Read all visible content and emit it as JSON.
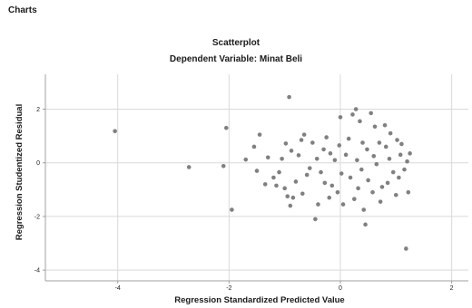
{
  "page": {
    "header": "Charts"
  },
  "chart_data": {
    "type": "scatter",
    "title": "Scatterplot",
    "subtitle": "Dependent Variable: Minat Beli",
    "xlabel": "Regression Standardized Predicted Value",
    "ylabel": "Regression Studentized Residual",
    "xlim": [
      -5.3,
      2.3
    ],
    "ylim": [
      -4.4,
      3.3
    ],
    "xticks": [
      -4,
      -2,
      0,
      2
    ],
    "yticks": [
      -4,
      -2,
      0,
      2
    ],
    "grid": true,
    "point_color": "#808080",
    "gridline_color": "#d9d9d9",
    "axis_color": "#a0a0a0",
    "points": [
      [
        -4.05,
        1.18
      ],
      [
        -2.72,
        -0.16
      ],
      [
        -2.1,
        -0.12
      ],
      [
        -2.05,
        1.3
      ],
      [
        -1.95,
        -1.75
      ],
      [
        -1.7,
        0.12
      ],
      [
        -1.55,
        0.6
      ],
      [
        -1.5,
        -0.3
      ],
      [
        -1.45,
        1.05
      ],
      [
        -1.35,
        -0.8
      ],
      [
        -1.3,
        0.2
      ],
      [
        -1.2,
        -0.55
      ],
      [
        -1.15,
        -0.85
      ],
      [
        -1.1,
        -0.35
      ],
      [
        -1.05,
        0.15
      ],
      [
        -1.0,
        -0.95
      ],
      [
        -0.98,
        0.72
      ],
      [
        -0.95,
        -1.25
      ],
      [
        -0.92,
        2.45
      ],
      [
        -0.9,
        -1.6
      ],
      [
        -0.88,
        0.45
      ],
      [
        -0.85,
        -1.3
      ],
      [
        -0.8,
        -0.7
      ],
      [
        -0.75,
        0.28
      ],
      [
        -0.7,
        0.85
      ],
      [
        -0.68,
        -1.15
      ],
      [
        -0.65,
        1.05
      ],
      [
        -0.6,
        -0.45
      ],
      [
        -0.55,
        -0.2
      ],
      [
        -0.5,
        0.75
      ],
      [
        -0.45,
        -2.1
      ],
      [
        -0.42,
        0.15
      ],
      [
        -0.4,
        -1.55
      ],
      [
        -0.35,
        -0.35
      ],
      [
        -0.3,
        0.5
      ],
      [
        -0.28,
        -0.75
      ],
      [
        -0.25,
        0.95
      ],
      [
        -0.2,
        -1.3
      ],
      [
        -0.18,
        0.35
      ],
      [
        -0.15,
        -0.85
      ],
      [
        -0.1,
        0.1
      ],
      [
        -0.05,
        -1.1
      ],
      [
        -0.02,
        0.65
      ],
      [
        0.0,
        1.7
      ],
      [
        0.02,
        -0.4
      ],
      [
        0.05,
        -1.55
      ],
      [
        0.1,
        0.3
      ],
      [
        0.15,
        0.9
      ],
      [
        0.18,
        -0.55
      ],
      [
        0.22,
        1.8
      ],
      [
        0.25,
        -1.35
      ],
      [
        0.28,
        2.0
      ],
      [
        0.3,
        0.1
      ],
      [
        0.32,
        -0.95
      ],
      [
        0.35,
        1.55
      ],
      [
        0.38,
        -0.25
      ],
      [
        0.4,
        0.75
      ],
      [
        0.42,
        -1.75
      ],
      [
        0.45,
        -2.3
      ],
      [
        0.48,
        0.5
      ],
      [
        0.5,
        -0.65
      ],
      [
        0.55,
        1.85
      ],
      [
        0.58,
        -1.1
      ],
      [
        0.6,
        0.25
      ],
      [
        0.62,
        1.35
      ],
      [
        0.65,
        -0.05
      ],
      [
        0.7,
        0.75
      ],
      [
        0.72,
        -1.45
      ],
      [
        0.75,
        -0.9
      ],
      [
        0.8,
        1.4
      ],
      [
        0.82,
        0.6
      ],
      [
        0.85,
        -0.75
      ],
      [
        0.88,
        0.15
      ],
      [
        0.9,
        1.1
      ],
      [
        0.95,
        -0.35
      ],
      [
        1.0,
        -1.2
      ],
      [
        1.02,
        0.85
      ],
      [
        1.05,
        -0.55
      ],
      [
        1.08,
        0.3
      ],
      [
        1.1,
        0.7
      ],
      [
        1.15,
        -0.25
      ],
      [
        1.18,
        -3.2
      ],
      [
        1.2,
        0.05
      ],
      [
        1.22,
        -1.1
      ],
      [
        1.25,
        0.35
      ]
    ]
  }
}
